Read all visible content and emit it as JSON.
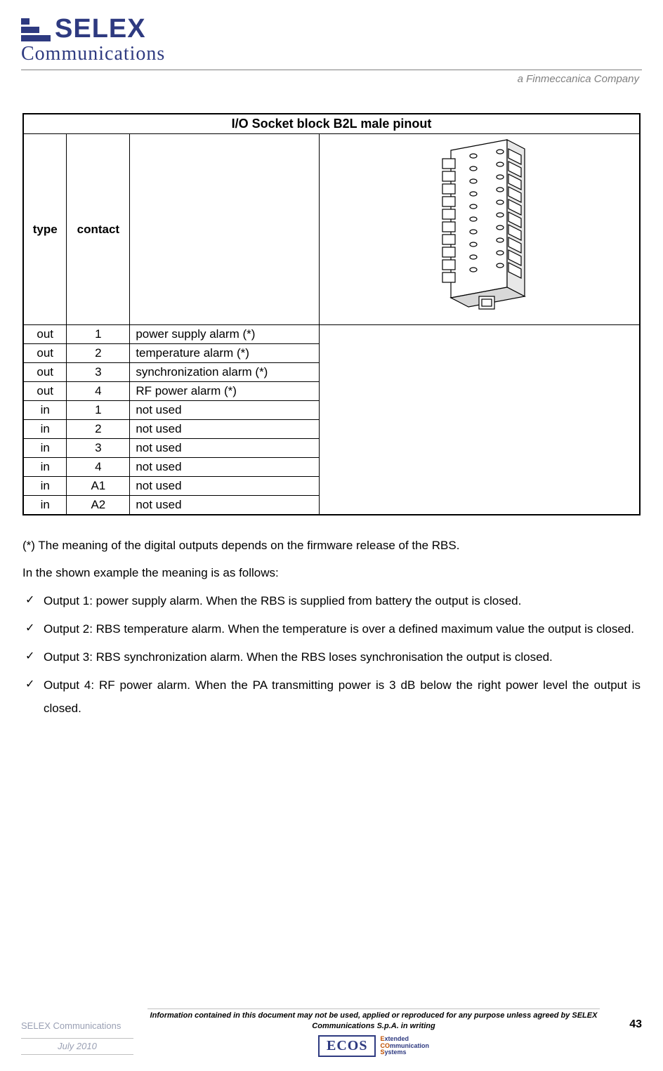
{
  "header": {
    "brand_top": "SELEX",
    "brand_bottom": "Communications",
    "tagline": "a Finmeccanica Company",
    "logo_color": "#2e3a80"
  },
  "table": {
    "title": "I/O Socket block B2L male pinout",
    "col_type": "type",
    "col_contact": "contact",
    "rows": [
      {
        "type": "out",
        "contact": "1",
        "desc": "power supply alarm (*)"
      },
      {
        "type": "out",
        "contact": "2",
        "desc": "temperature alarm (*)"
      },
      {
        "type": "out",
        "contact": "3",
        "desc": "synchronization alarm (*)"
      },
      {
        "type": "out",
        "contact": "4",
        "desc": "RF power alarm (*)"
      },
      {
        "type": "in",
        "contact": "1",
        "desc": "not used"
      },
      {
        "type": "in",
        "contact": "2",
        "desc": "not used"
      },
      {
        "type": "in",
        "contact": "3",
        "desc": "not used"
      },
      {
        "type": "in",
        "contact": "4",
        "desc": "not used"
      },
      {
        "type": "in",
        "contact": "A1",
        "desc": "not used"
      },
      {
        "type": "in",
        "contact": "A2",
        "desc": "not used"
      }
    ],
    "border_color": "#000000",
    "font_size": 17
  },
  "body": {
    "note": "(*) The meaning of the digital outputs depends on the firmware release of the RBS.",
    "intro": "In the shown example the meaning is as follows:",
    "bullets": [
      "Output 1: power supply alarm. When the RBS is supplied from battery the output is closed.",
      "Output 2: RBS temperature alarm. When the temperature is over a defined maximum value the output is closed.",
      "Output 3: RBS synchronization alarm. When the RBS loses synchronisation the output is closed.",
      "Output 4: RF power alarm. When the PA transmitting power is 3 dB below the right power level the output is closed."
    ]
  },
  "footer": {
    "company": "SELEX Communications",
    "disclaimer": "Information contained in this document may not be used, applied or reproduced for any purpose unless agreed by SELEX Communications S.p.A. in writing",
    "page_number": "43",
    "date": "July 2010",
    "ecos_label": "ECOS",
    "ecos_e": "E",
    "ecos_xt": "xtended",
    "ecos_co": "CO",
    "ecos_mm": "mmunication",
    "ecos_s": "S",
    "ecos_ys": "ystems"
  }
}
